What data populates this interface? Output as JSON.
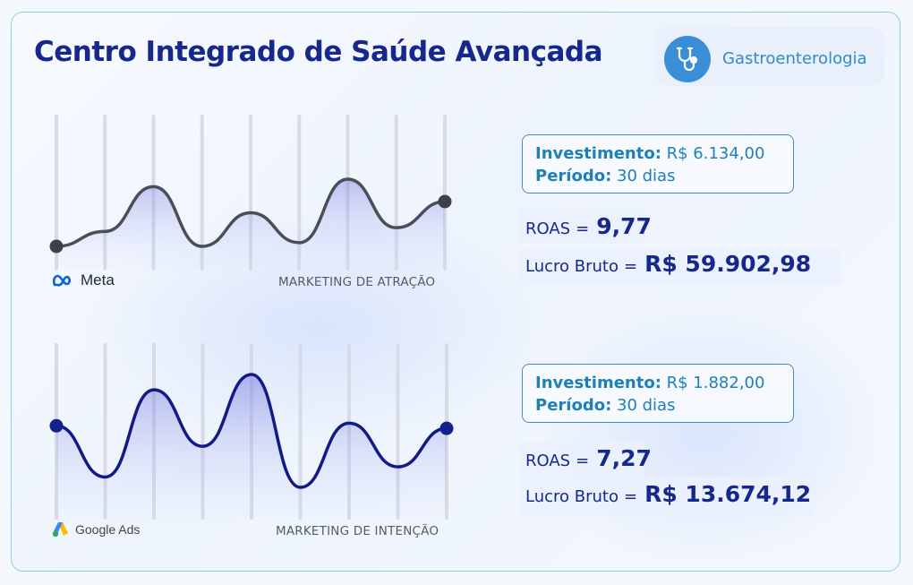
{
  "header": {
    "title": "Centro Integrado de Saúde Avançada",
    "specialty": "Gastroenterologia",
    "specialty_icon": "stethoscope-icon"
  },
  "colors": {
    "title": "#17288c",
    "accent": "#3a8ed6",
    "meta_line": "#4a4e57",
    "meta_point": "#3d4047",
    "gads_line": "#121b85",
    "gads_point": "#14208c",
    "area_fill": "#7a7fe0"
  },
  "chart_data": [
    {
      "type": "line",
      "series_name": "Meta",
      "caption": "MARKETING DE ATRAÇÃO",
      "x": [
        0,
        1,
        2,
        3,
        4,
        5,
        6,
        7,
        8
      ],
      "values": [
        0.0,
        0.4,
        1.6,
        0.0,
        0.9,
        0.1,
        1.8,
        0.5,
        1.2
      ],
      "ylim": [
        -0.2,
        2.0
      ],
      "grid": true,
      "area": true,
      "endpoints_marked": true
    },
    {
      "type": "line",
      "series_name": "Google Ads",
      "caption": "MARKETING DE INTENÇÃO",
      "x": [
        0,
        1,
        2,
        3,
        4,
        5,
        6,
        7,
        8
      ],
      "values": [
        1.0,
        0.0,
        1.7,
        0.6,
        2.0,
        -0.2,
        1.05,
        0.2,
        0.95
      ],
      "ylim": [
        -0.4,
        2.2
      ],
      "grid": true,
      "area": true,
      "endpoints_marked": true
    }
  ],
  "meta": {
    "brand": "Meta",
    "brand_icon": "meta-logo-icon",
    "label": "MARKETING DE ATRAÇÃO",
    "investimento_key": "Investimento:",
    "investimento_val": "R$ 6.134,00",
    "periodo_key": "Período:",
    "periodo_val": "30 dias",
    "roas_key": "ROAS",
    "eq": "=",
    "roas_val": "9,77",
    "lucro_key": "Lucro Bruto",
    "lucro_val": "R$ 59.902,98"
  },
  "gads": {
    "brand": "Google Ads",
    "brand_icon": "google-ads-logo-icon",
    "label": "MARKETING DE INTENÇÃO",
    "investimento_key": "Investimento:",
    "investimento_val": "R$ 1.882,00",
    "periodo_key": "Período:",
    "periodo_val": "30 dias",
    "roas_key": "ROAS",
    "eq": "=",
    "roas_val": "7,27",
    "lucro_key": "Lucro Bruto",
    "lucro_val": "R$ 13.674,12"
  }
}
